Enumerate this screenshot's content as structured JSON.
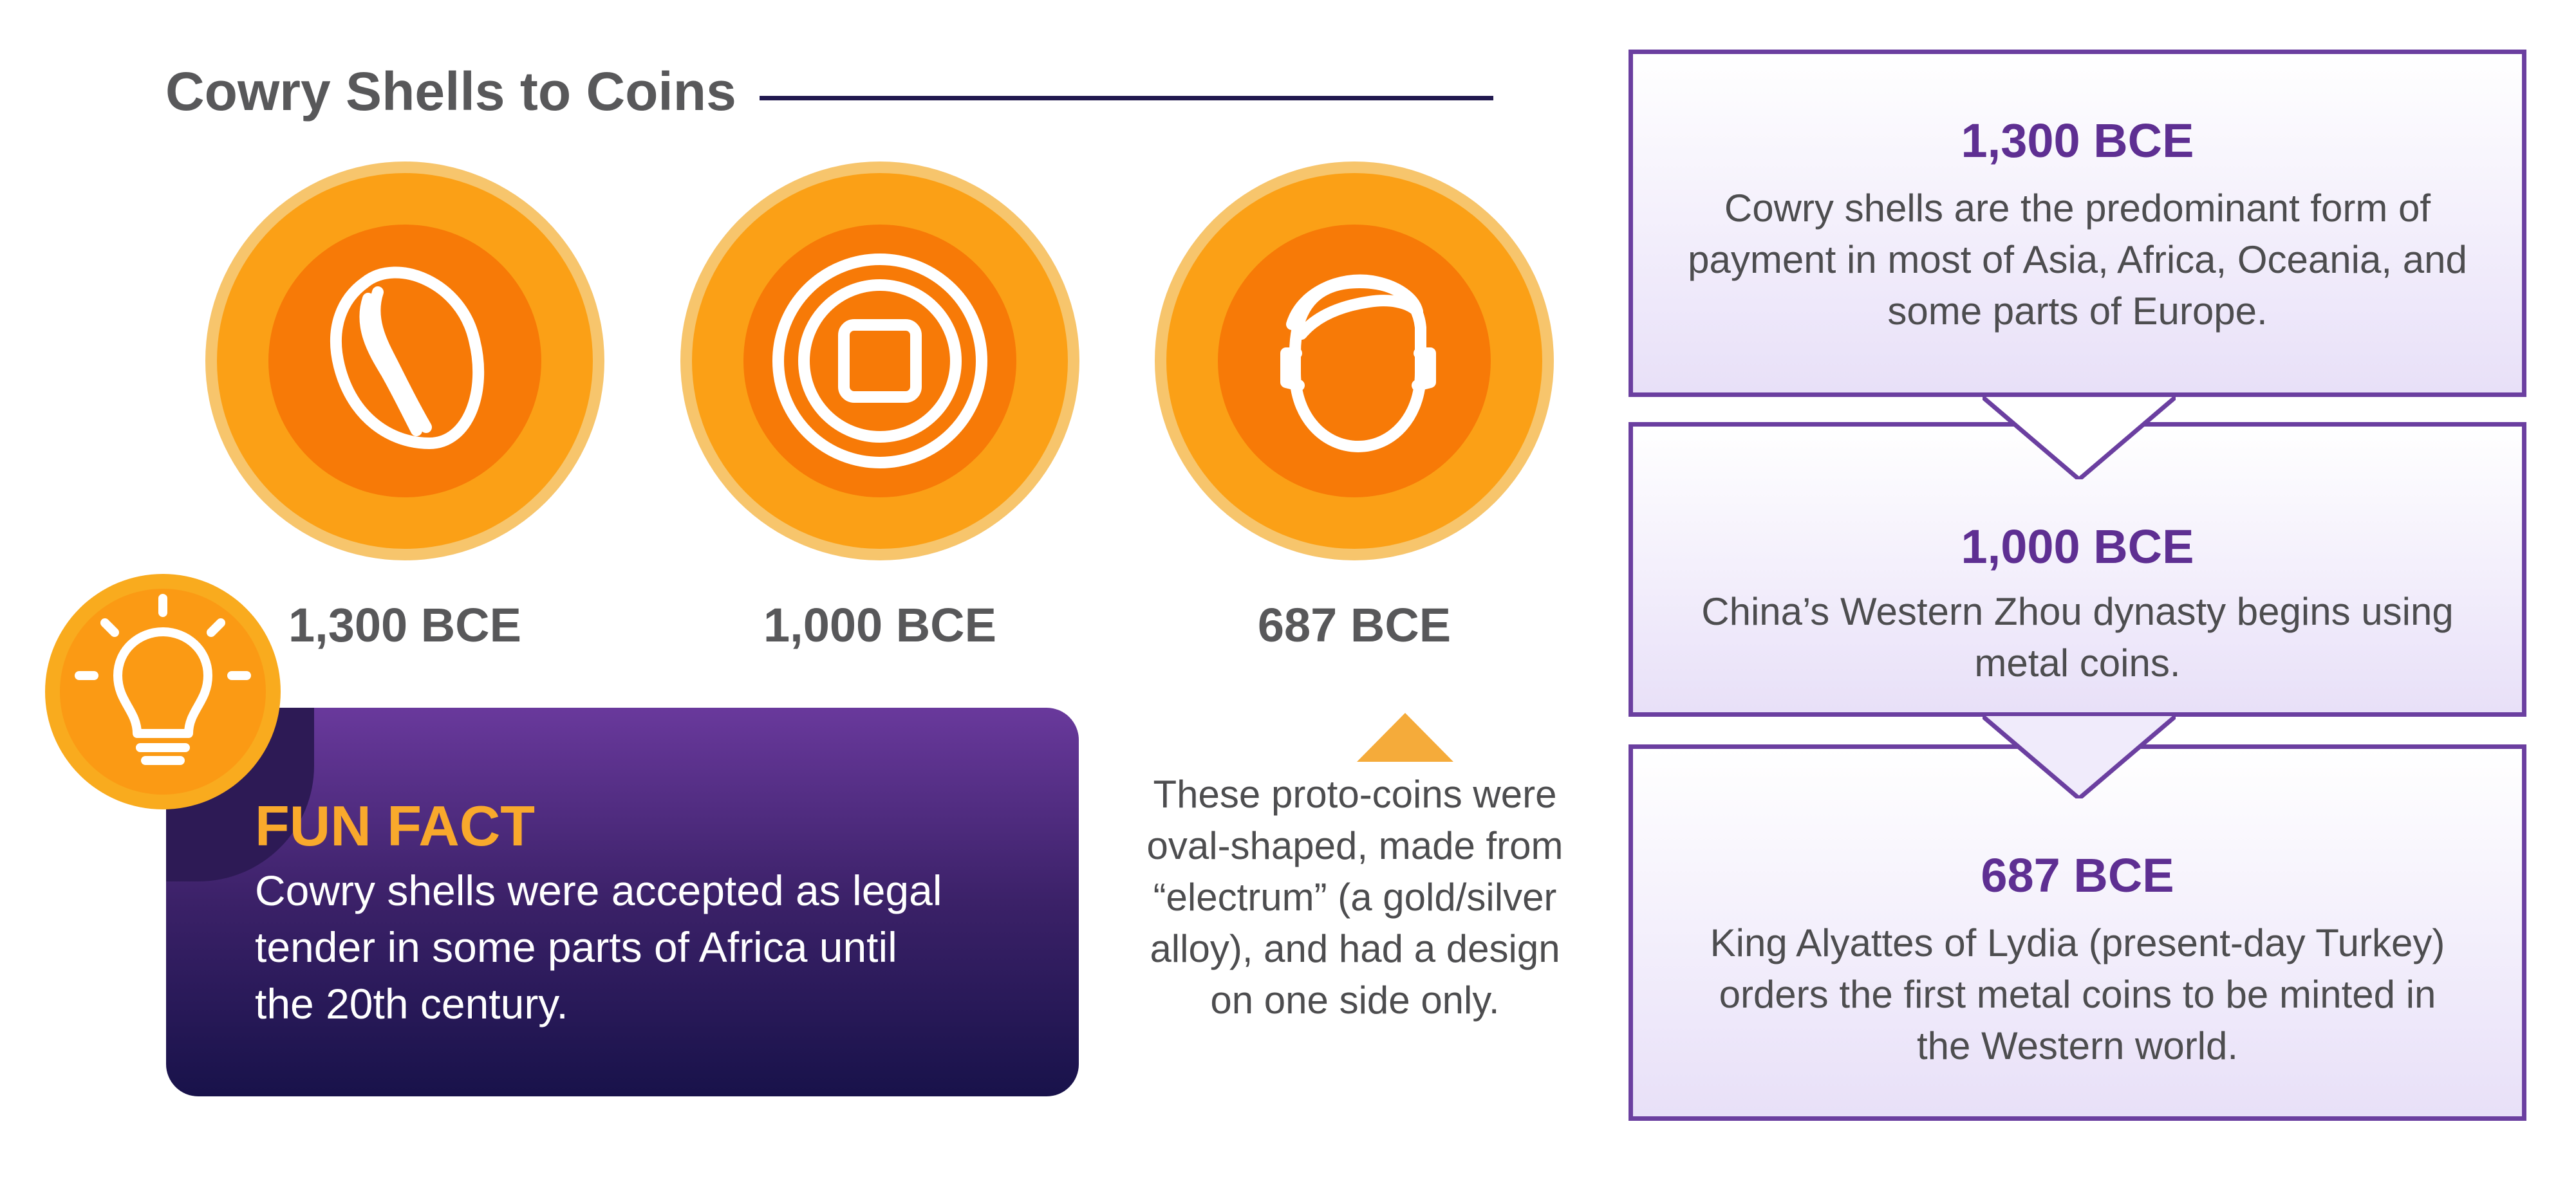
{
  "title": "Cowry Shells to Coins",
  "colors": {
    "title_text": "#58585a",
    "title_rule": "#21194f",
    "medallion_outer": "#f7c56c",
    "medallion_main": "#fb9612",
    "medallion_inner": "#f77a07",
    "fun_fact_gradient_top": "#69399c",
    "fun_fact_gradient_bottom": "#18124a",
    "fun_fact_title": "#f9a92c",
    "timeline_border": "#6b3fa0",
    "timeline_year": "#5e2f92",
    "timeline_bg": "#e8e0f8"
  },
  "medallions": [
    {
      "icon": "cowry-shell-icon",
      "label": "1,300 BCE"
    },
    {
      "icon": "square-hole-coin-icon",
      "label": "1,000 BCE"
    },
    {
      "icon": "head-profile-coin-icon",
      "label": "687 BCE"
    }
  ],
  "fun_fact": {
    "icon": "lightbulb-icon",
    "title": "FUN FACT",
    "lines": [
      "Cowry shells were accepted as legal",
      "tender in some parts of Africa until",
      "the 20th century."
    ]
  },
  "callout": {
    "lines": [
      "These proto-coins were",
      "oval-shaped, made from",
      "“electrum” (a gold/silver",
      "alloy), and had a design",
      "on one side only."
    ]
  },
  "timeline": [
    {
      "year": "1,300 BCE",
      "lines": [
        "Cowry shells are the predominant form of",
        "payment in most of Asia, Africa, Oceania, and",
        "some parts of Europe."
      ]
    },
    {
      "year": "1,000 BCE",
      "lines": [
        "China’s Western Zhou dynasty begins using",
        "metal coins."
      ]
    },
    {
      "year": "687 BCE",
      "lines": [
        "King Alyattes of Lydia (present-day Turkey)",
        "orders the first metal coins to be minted in",
        "the Western world."
      ]
    }
  ]
}
